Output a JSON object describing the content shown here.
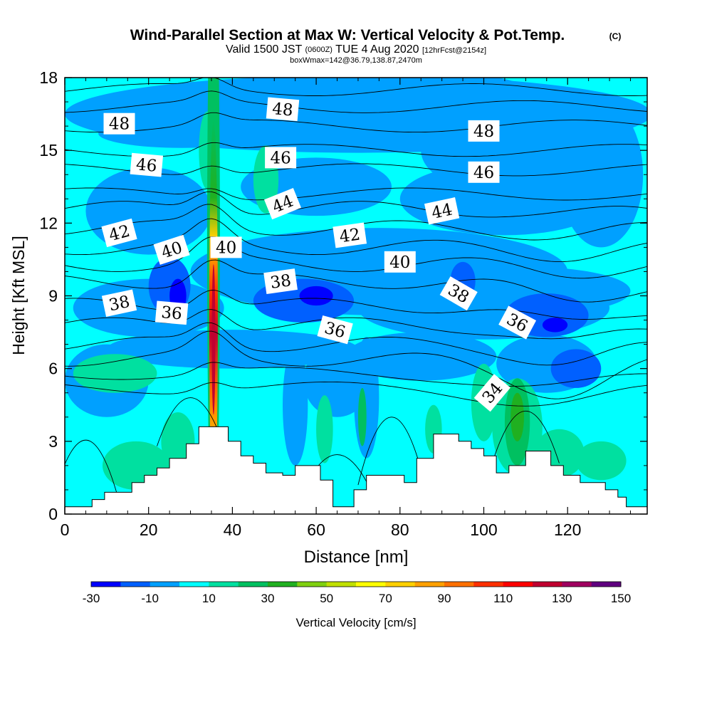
{
  "title": {
    "main": "Wind-Parallel Section at Max W: Vertical Velocity & Pot.Temp.",
    "copyright": "(C)",
    "valid_a": "Valid 1500 JST",
    "valid_z": "(0600Z)",
    "valid_b": "TUE 4 Aug 2020",
    "fcst": "[12hrFcst@2154z]",
    "box": "boxWmax=142@36.79,138.87,2470m"
  },
  "chart_data": {
    "type": "heatmap",
    "xlabel": "Distance [nm]",
    "ylabel": "Height [Kft MSL]",
    "xlim": [
      0,
      139
    ],
    "ylim": [
      0,
      18
    ],
    "x_ticks": [
      "0",
      "20",
      "40",
      "60",
      "80",
      "100",
      "120"
    ],
    "y_ticks": [
      "0",
      "3",
      "6",
      "9",
      "12",
      "15",
      "18"
    ],
    "colorbar": {
      "label": "Vertical Velocity [cm/s]",
      "tick_labels": [
        "-30",
        "-10",
        "10",
        "30",
        "50",
        "70",
        "90",
        "110",
        "130",
        "150"
      ],
      "colors": [
        "#0000ff",
        "#0060ff",
        "#00a0ff",
        "#00ffff",
        "#00e0a0",
        "#00c060",
        "#20b020",
        "#80d010",
        "#c0e000",
        "#ffff00",
        "#ffd000",
        "#ffa000",
        "#ff7000",
        "#ff3000",
        "#ff0000",
        "#c00030",
        "#a00060",
        "#600080"
      ]
    },
    "contour_labels": [
      {
        "text": "48",
        "x": 13,
        "y": 16.1,
        "angle": 0
      },
      {
        "text": "48",
        "x": 52,
        "y": 16.7,
        "angle": 5
      },
      {
        "text": "48",
        "x": 100,
        "y": 15.8,
        "angle": 0
      },
      {
        "text": "46",
        "x": 19.5,
        "y": 14.4,
        "angle": 5
      },
      {
        "text": "46",
        "x": 51.5,
        "y": 14.7,
        "angle": 0
      },
      {
        "text": "46",
        "x": 100,
        "y": 14.1,
        "angle": 0
      },
      {
        "text": "44",
        "x": 52,
        "y": 12.8,
        "angle": -22
      },
      {
        "text": "44",
        "x": 90,
        "y": 12.5,
        "angle": -12
      },
      {
        "text": "42",
        "x": 13,
        "y": 11.6,
        "angle": -15
      },
      {
        "text": "42",
        "x": 68,
        "y": 11.5,
        "angle": -8
      },
      {
        "text": "40",
        "x": 25.5,
        "y": 10.9,
        "angle": -18
      },
      {
        "text": "40",
        "x": 38.5,
        "y": 11.0,
        "angle": 0
      },
      {
        "text": "40",
        "x": 80,
        "y": 10.4,
        "angle": 0
      },
      {
        "text": "38",
        "x": 13,
        "y": 8.7,
        "angle": -12
      },
      {
        "text": "38",
        "x": 51.5,
        "y": 9.6,
        "angle": -8
      },
      {
        "text": "38",
        "x": 94,
        "y": 9.1,
        "angle": 30
      },
      {
        "text": "36",
        "x": 25.5,
        "y": 8.3,
        "angle": 5
      },
      {
        "text": "36",
        "x": 64.5,
        "y": 7.6,
        "angle": 15
      },
      {
        "text": "36",
        "x": 108,
        "y": 7.9,
        "angle": 28
      },
      {
        "text": "34",
        "x": 102,
        "y": 5.0,
        "angle": -50
      }
    ],
    "terrain_steps": [
      [
        0,
        0.3
      ],
      [
        6.5,
        0.6
      ],
      [
        9.5,
        0.9
      ],
      [
        16,
        1.3
      ],
      [
        19,
        1.6
      ],
      [
        22,
        1.9
      ],
      [
        25,
        2.3
      ],
      [
        29,
        2.9
      ],
      [
        32,
        3.6
      ],
      [
        39,
        3.0
      ],
      [
        42,
        2.4
      ],
      [
        45,
        2.1
      ],
      [
        48,
        1.7
      ],
      [
        52,
        1.6
      ],
      [
        55,
        2.0
      ],
      [
        61,
        1.4
      ],
      [
        64,
        0.3
      ],
      [
        69,
        1.0
      ],
      [
        72,
        1.6
      ],
      [
        81,
        1.3
      ],
      [
        84,
        2.3
      ],
      [
        88,
        3.3
      ],
      [
        94,
        3.0
      ],
      [
        97,
        2.7
      ],
      [
        100,
        2.4
      ],
      [
        103,
        1.7
      ],
      [
        106,
        2.0
      ],
      [
        110,
        2.6
      ],
      [
        116,
        2.0
      ],
      [
        119,
        1.6
      ],
      [
        123,
        1.3
      ],
      [
        129,
        1.0
      ],
      [
        132,
        0.7
      ],
      [
        134,
        0.3
      ]
    ],
    "isentrope_levels": [
      34,
      35,
      36,
      37,
      38,
      39,
      40,
      41,
      42,
      43,
      44,
      45,
      46,
      47,
      48,
      49,
      50
    ]
  }
}
